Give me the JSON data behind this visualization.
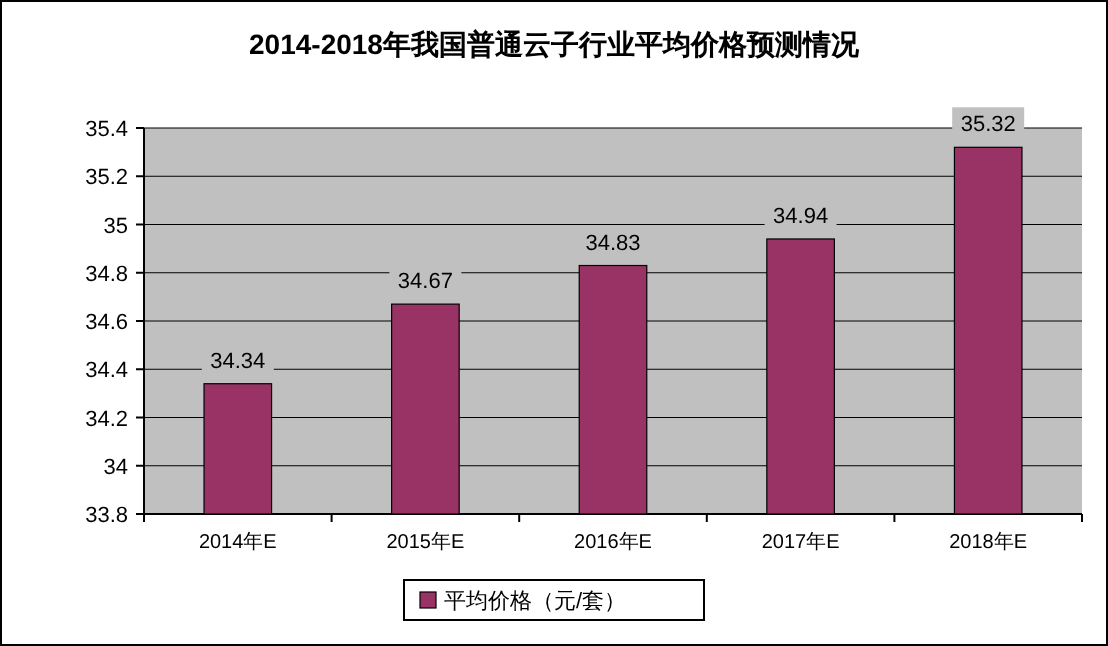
{
  "chart_data": {
    "type": "bar",
    "title": "2014-2018年我国普通云子行业平均价格预测情况",
    "categories": [
      "2014年E",
      "2015年E",
      "2016年E",
      "2017年E",
      "2018年E"
    ],
    "series": [
      {
        "name": "平均价格（元/套）",
        "color": "#993366",
        "values": [
          34.34,
          34.67,
          34.83,
          34.94,
          35.32
        ]
      }
    ],
    "ylim": [
      33.8,
      35.4
    ],
    "yticks": [
      33.8,
      34,
      34.2,
      34.4,
      34.6,
      34.8,
      35,
      35.2,
      35.4
    ],
    "grid": "y",
    "legend": "bottom",
    "data_labels": true
  }
}
